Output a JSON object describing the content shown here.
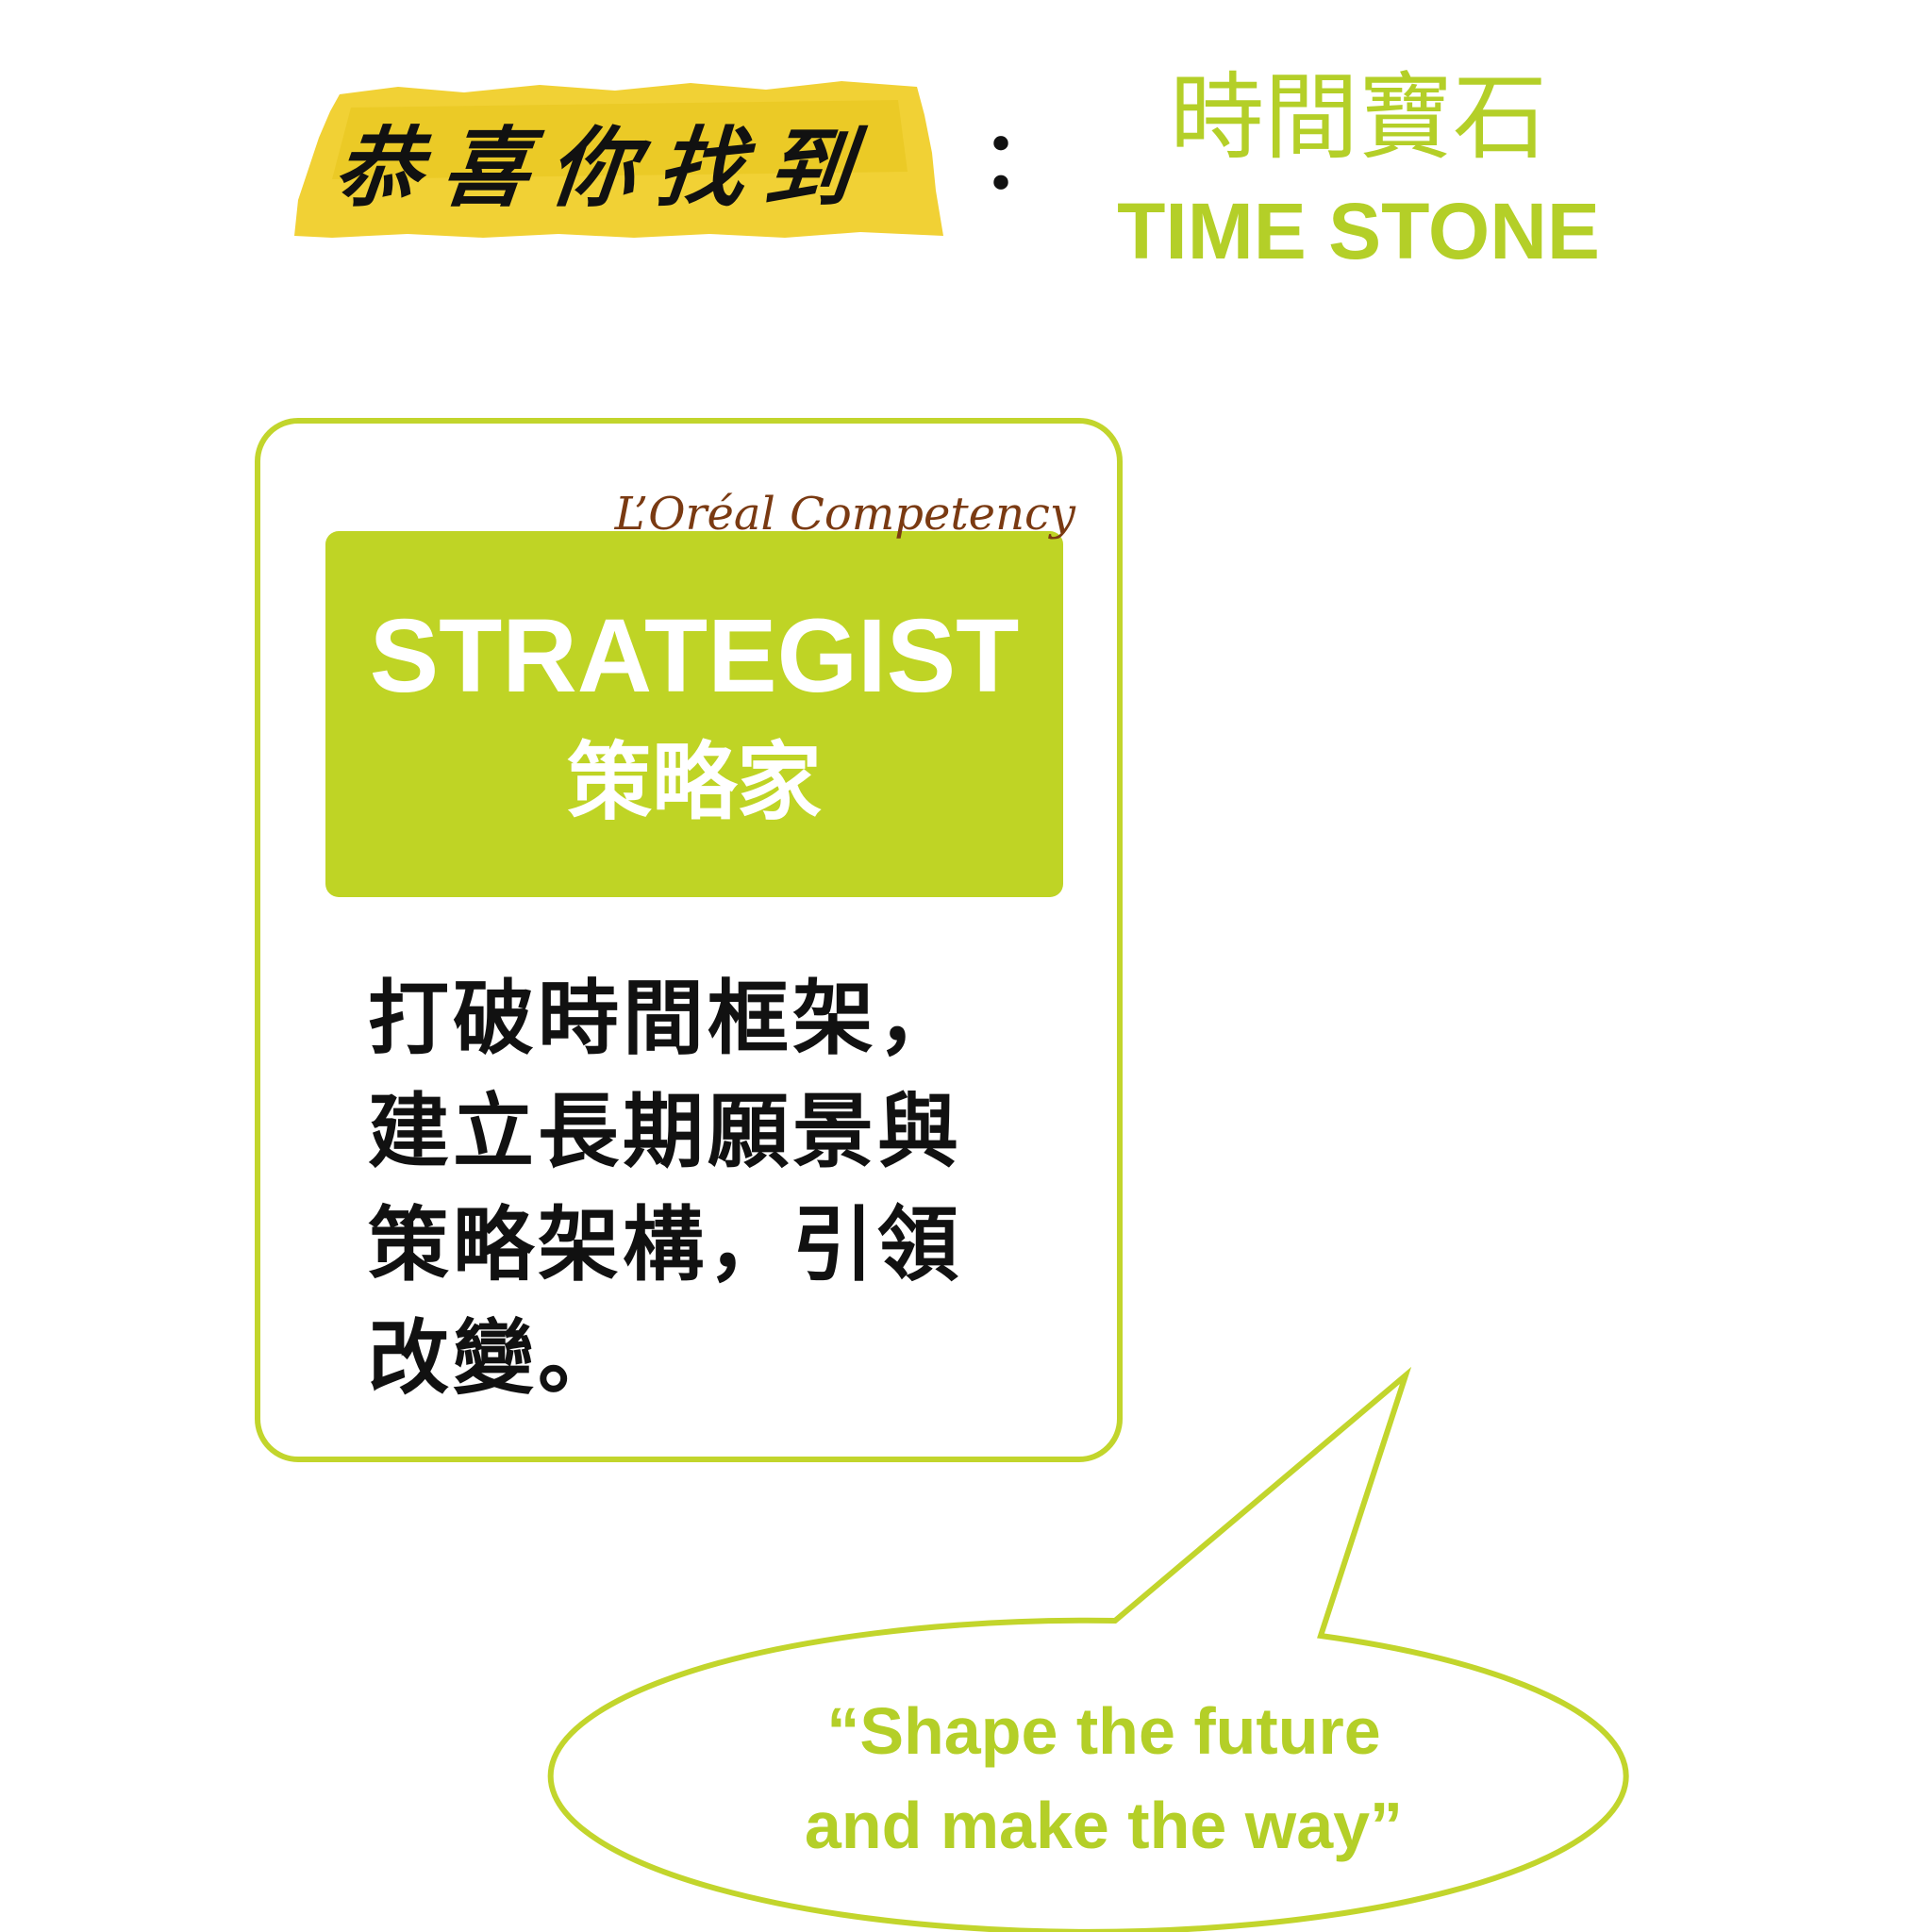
{
  "header": {
    "script_text": "恭喜你找到",
    "colon": "：",
    "stone_name_zh": "時間寶石",
    "stone_name_en": "TIME STONE"
  },
  "card": {
    "competency_label": "L’Oréal Competency",
    "title_en": "STRATEGIST",
    "title_zh": "策略家",
    "description_lines": [
      "打破時間框架，",
      "建立長期願景與",
      "策略架構，引領",
      "改變。"
    ]
  },
  "bubble": {
    "quote_lines": [
      "“Shape the future",
      "and make the way”"
    ]
  },
  "colors": {
    "accent_green": "#bfd425",
    "header_highlight": "#f0cf2a",
    "competency_brown": "#7a3a12"
  }
}
